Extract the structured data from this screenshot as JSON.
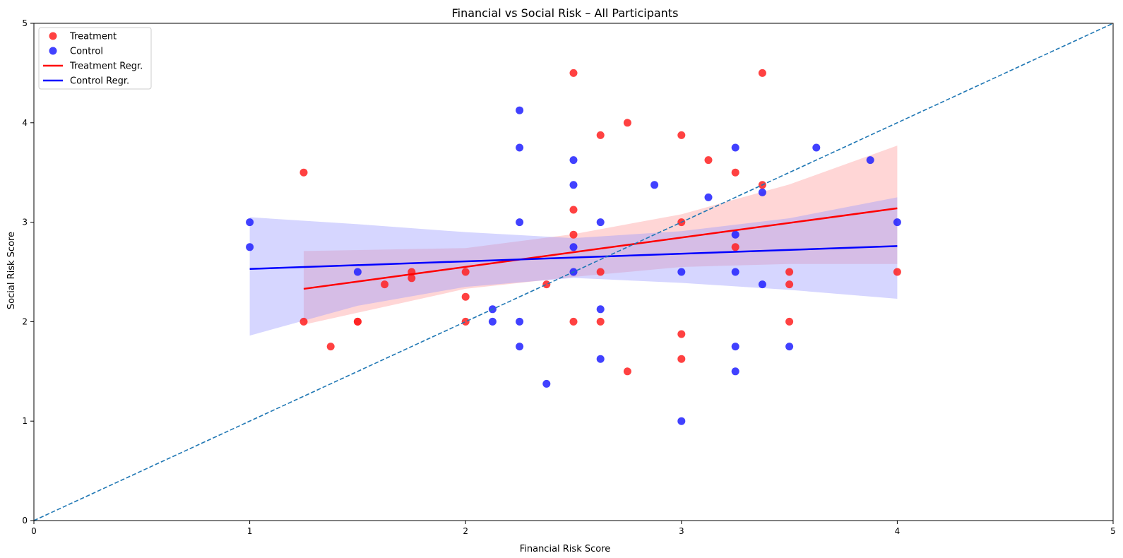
{
  "chart_data": {
    "type": "scatter",
    "title": "Financial vs Social Risk – All Participants",
    "xlabel": "Financial Risk Score",
    "ylabel": "Social Risk Score",
    "xlim": [
      0,
      5
    ],
    "ylim": [
      0,
      5
    ],
    "xticks": [
      "0",
      "1",
      "2",
      "3",
      "4",
      "5"
    ],
    "yticks": [
      "0",
      "1",
      "2",
      "3",
      "4",
      "5"
    ],
    "grid": false,
    "legend": {
      "placement": "top-left"
    },
    "colors": {
      "treatment": "#ff2020",
      "control": "#2020ff",
      "treatment_line": "#ff0000",
      "control_line": "#0000ff",
      "treatment_band": "#ff9999",
      "control_band": "#9999ff",
      "identity": "#1f77b4"
    },
    "series": [
      {
        "name": "Treatment",
        "kind": "points",
        "color_key": "treatment",
        "points": [
          [
            1.25,
            3.5
          ],
          [
            1.25,
            2.0
          ],
          [
            1.375,
            1.75
          ],
          [
            1.5,
            2.0
          ],
          [
            1.5,
            2.0
          ],
          [
            1.625,
            2.375
          ],
          [
            1.75,
            2.5
          ],
          [
            1.75,
            2.4375
          ],
          [
            2.0,
            2.5
          ],
          [
            2.0,
            2.25
          ],
          [
            2.0,
            2.0
          ],
          [
            2.375,
            2.375
          ],
          [
            2.5,
            4.5
          ],
          [
            2.5,
            3.125
          ],
          [
            2.5,
            2.875
          ],
          [
            2.5,
            2.0
          ],
          [
            2.625,
            3.875
          ],
          [
            2.625,
            2.5
          ],
          [
            2.625,
            2.0
          ],
          [
            2.75,
            4.0
          ],
          [
            2.75,
            1.5
          ],
          [
            3.0,
            3.875
          ],
          [
            3.0,
            3.0
          ],
          [
            3.0,
            1.875
          ],
          [
            3.0,
            1.625
          ],
          [
            3.125,
            3.625
          ],
          [
            3.25,
            3.5
          ],
          [
            3.25,
            2.75
          ],
          [
            3.375,
            4.5
          ],
          [
            3.375,
            3.375
          ],
          [
            3.5,
            2.5
          ],
          [
            3.5,
            2.375
          ],
          [
            3.5,
            2.0
          ],
          [
            4.0,
            2.5
          ]
        ]
      },
      {
        "name": "Control",
        "kind": "points",
        "color_key": "control",
        "points": [
          [
            1.0,
            3.0
          ],
          [
            1.0,
            2.75
          ],
          [
            1.5,
            2.5
          ],
          [
            2.125,
            2.125
          ],
          [
            2.125,
            2.0
          ],
          [
            2.25,
            4.125
          ],
          [
            2.25,
            3.75
          ],
          [
            2.25,
            3.0
          ],
          [
            2.25,
            2.0
          ],
          [
            2.25,
            1.75
          ],
          [
            2.375,
            1.375
          ],
          [
            2.5,
            3.625
          ],
          [
            2.5,
            3.375
          ],
          [
            2.5,
            2.75
          ],
          [
            2.5,
            2.5
          ],
          [
            2.625,
            3.0
          ],
          [
            2.625,
            2.125
          ],
          [
            2.625,
            1.625
          ],
          [
            2.875,
            3.375
          ],
          [
            3.0,
            2.5
          ],
          [
            3.0,
            1.0
          ],
          [
            3.125,
            3.25
          ],
          [
            3.25,
            3.75
          ],
          [
            3.25,
            2.875
          ],
          [
            3.25,
            2.5
          ],
          [
            3.25,
            1.75
          ],
          [
            3.25,
            1.5
          ],
          [
            3.375,
            3.3
          ],
          [
            3.375,
            2.375
          ],
          [
            3.5,
            1.75
          ],
          [
            3.625,
            3.75
          ],
          [
            3.875,
            3.625
          ],
          [
            4.0,
            3.0
          ]
        ]
      },
      {
        "name": "Treatment Regr.",
        "kind": "line",
        "color_key": "treatment_line",
        "x": [
          1.25,
          4.0
        ],
        "y": [
          2.33,
          3.14
        ],
        "ci_band": {
          "x": [
            1.25,
            2.0,
            2.5,
            3.0,
            3.5,
            4.0
          ],
          "upper": [
            2.71,
            2.74,
            2.88,
            3.08,
            3.38,
            3.77
          ],
          "lower": [
            1.97,
            2.33,
            2.45,
            2.55,
            2.58,
            2.58
          ]
        }
      },
      {
        "name": "Control Regr.",
        "kind": "line",
        "color_key": "control_line",
        "x": [
          1.0,
          4.0
        ],
        "y": [
          2.53,
          2.76
        ],
        "ci_band": {
          "x": [
            1.0,
            1.5,
            2.0,
            2.5,
            3.0,
            3.5,
            4.0
          ],
          "upper": [
            3.05,
            2.98,
            2.9,
            2.84,
            2.91,
            3.04,
            3.25
          ],
          "lower": [
            1.86,
            2.16,
            2.35,
            2.44,
            2.39,
            2.32,
            2.23
          ]
        }
      },
      {
        "kind": "identity",
        "color_key": "identity",
        "x": [
          0,
          5
        ],
        "y": [
          0,
          5
        ]
      }
    ]
  }
}
